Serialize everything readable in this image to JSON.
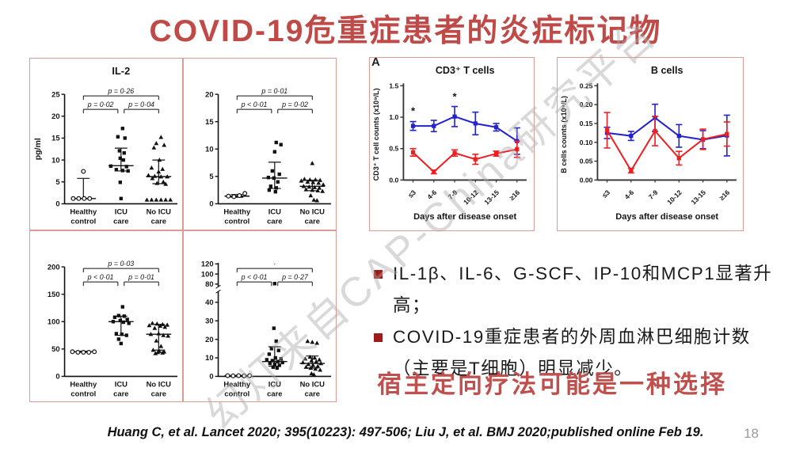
{
  "slide": {
    "title": "COVID-19危重症患者的炎症标记物",
    "panel_label": "A",
    "watermark": "幻灯来自CAP-China研究平台",
    "bullets": [
      [
        "IL-1β、IL-6、G-SCF、IP-10和MCP1显著升高；"
      ],
      [
        "COVID-19重症患者的外周血淋巴细胞计数",
        "（主要是T细胞）明显减少。"
      ]
    ],
    "conclusion": "宿主定向疗法可能是一种选择",
    "citation": "Huang C, et al. Lancet 2020; 395(10223): 497-506; Liu J, et al. BMJ 2020;published online Feb 19.",
    "page_number": "18"
  },
  "colors": {
    "title_red": "#BF4A47",
    "conclusion_red": "#C0504D",
    "bullet_square_red": "#9E1B1B",
    "panel_border_pink": "#DD9B94",
    "series_blue": "#2323CE",
    "series_red": "#EC2020",
    "watermark_gray": "#AAAAAA",
    "page_number_gray": "#9A9A9A"
  },
  "chart_data": [
    {
      "type": "scatter",
      "title": "IL-2",
      "ylabel": "pg/ml",
      "ylim": [
        0,
        25
      ],
      "yticks": [
        0,
        5,
        10,
        15,
        20,
        25
      ],
      "categories": [
        [
          "Healthy",
          "control"
        ],
        [
          "ICU",
          "care"
        ],
        [
          "No ICU",
          "care"
        ]
      ],
      "brackets": [
        {
          "from": 0,
          "to": 2,
          "level": 0,
          "label": "p = 0·26"
        },
        {
          "from": 0,
          "to": 1,
          "level": 1,
          "label": "p = 0·02"
        },
        {
          "from": 1,
          "to": 2,
          "level": 1,
          "label": "p = 0·04"
        }
      ],
      "groups": [
        {
          "marker": "circle-open",
          "median": 1.2,
          "q1": 1.2,
          "q3": 5.8,
          "points": [
            [
              -13,
              1.2
            ],
            [
              -6,
              1.2
            ],
            [
              1,
              1.2
            ],
            [
              8,
              1.2
            ],
            [
              0,
              7.4
            ]
          ]
        },
        {
          "marker": "square",
          "median": 8.7,
          "q1": 7.5,
          "q3": 12.7,
          "points": [
            [
              2,
              17.2
            ],
            [
              -4,
              15.3
            ],
            [
              5,
              15.0
            ],
            [
              -2,
              12.1
            ],
            [
              4,
              11.6
            ],
            [
              -1,
              10.4
            ],
            [
              3,
              10.0
            ],
            [
              -13,
              8.6
            ],
            [
              7,
              8.5
            ],
            [
              -6,
              7.8
            ],
            [
              2,
              7.6
            ],
            [
              9,
              7.5
            ],
            [
              -1,
              4.9
            ],
            [
              0,
              1.2
            ]
          ]
        },
        {
          "marker": "triangle",
          "median": 6.2,
          "q1": 4.6,
          "q3": 10.0,
          "points": [
            [
              3,
              15.2
            ],
            [
              -3,
              13.8
            ],
            [
              7,
              13.4
            ],
            [
              -6,
              12.8
            ],
            [
              1,
              10.0
            ],
            [
              -9,
              8.2
            ],
            [
              5,
              7.9
            ],
            [
              0,
              7.3
            ],
            [
              -13,
              6.5
            ],
            [
              -5,
              6.3
            ],
            [
              3,
              6.2
            ],
            [
              11,
              6.2
            ],
            [
              -8,
              5.8
            ],
            [
              6,
              5.0
            ],
            [
              -2,
              4.7
            ],
            [
              9,
              4.5
            ],
            [
              -15,
              0.9
            ],
            [
              -9,
              0.9
            ],
            [
              -3,
              0.9
            ],
            [
              3,
              0.9
            ],
            [
              9,
              0.9
            ],
            [
              15,
              0.9
            ]
          ]
        }
      ]
    },
    {
      "type": "scatter",
      "title": "",
      "ylabel": "",
      "ylim": [
        0,
        20
      ],
      "yticks": [
        0,
        5,
        10,
        15,
        20
      ],
      "categories": [
        [
          "Healthy",
          "control"
        ],
        [
          "ICU",
          "care"
        ],
        [
          "No ICU",
          "care"
        ]
      ],
      "brackets": [
        {
          "from": 0,
          "to": 2,
          "level": 0,
          "label": "p = 0·01"
        },
        {
          "from": 0,
          "to": 1,
          "level": 1,
          "label": "p < 0·01"
        },
        {
          "from": 1,
          "to": 2,
          "level": 1,
          "label": "p = 0·02"
        }
      ],
      "groups": [
        {
          "marker": "circle-open",
          "median": 1.4,
          "q1": 1.2,
          "q3": 1.7,
          "points": [
            [
              -11,
              1.4
            ],
            [
              -4,
              1.3
            ],
            [
              3,
              1.5
            ],
            [
              10,
              1.9
            ]
          ]
        },
        {
          "marker": "square",
          "median": 4.7,
          "q1": 2.8,
          "q3": 7.6,
          "points": [
            [
              2,
              11.2
            ],
            [
              8,
              10.8
            ],
            [
              0,
              9.5
            ],
            [
              -3,
              6.0
            ],
            [
              6,
              5.4
            ],
            [
              -8,
              4.8
            ],
            [
              -1,
              4.7
            ],
            [
              4,
              4.0
            ],
            [
              -5,
              3.2
            ],
            [
              2,
              2.9
            ],
            [
              -7,
              2.5
            ],
            [
              1,
              2.2
            ]
          ]
        },
        {
          "marker": "triangle",
          "median": 3.2,
          "q1": 2.4,
          "q3": 4.3,
          "points": [
            [
              0,
              7.4
            ],
            [
              -10,
              4.5
            ],
            [
              -3,
              4.4
            ],
            [
              4,
              4.4
            ],
            [
              10,
              4.3
            ],
            [
              -14,
              4.2
            ],
            [
              -6,
              4.0
            ],
            [
              1,
              3.9
            ],
            [
              8,
              3.8
            ],
            [
              14,
              3.5
            ],
            [
              -11,
              3.2
            ],
            [
              -4,
              3.1
            ],
            [
              3,
              3.0
            ],
            [
              9,
              2.9
            ],
            [
              -8,
              2.6
            ],
            [
              0,
              2.5
            ],
            [
              7,
              2.4
            ],
            [
              13,
              2.3
            ],
            [
              -2,
              1.5
            ],
            [
              2,
              0.7
            ],
            [
              6,
              0.6
            ]
          ]
        }
      ]
    },
    {
      "type": "scatter",
      "title": "",
      "ylabel": "",
      "ylim": [
        0,
        200
      ],
      "yticks": [
        0,
        50,
        100,
        150,
        200
      ],
      "categories": [
        [
          "Healthy",
          "control"
        ],
        [
          "ICU",
          "care"
        ],
        [
          "No ICU",
          "care"
        ]
      ],
      "brackets": [
        {
          "from": 0,
          "to": 2,
          "level": 0,
          "label": "p = 0·03"
        },
        {
          "from": 0,
          "to": 1,
          "level": 1,
          "label": "p < 0·01"
        },
        {
          "from": 1,
          "to": 2,
          "level": 1,
          "label": "p = 0·01"
        }
      ],
      "groups": [
        {
          "marker": "circle-open",
          "median": 45,
          "q1": 44,
          "q3": 46,
          "points": [
            [
              -14,
              45
            ],
            [
              -7,
              44
            ],
            [
              0,
              44
            ],
            [
              7,
              44
            ],
            [
              14,
              45
            ]
          ]
        },
        {
          "marker": "square",
          "median": 100,
          "q1": 75,
          "q3": 110,
          "points": [
            [
              2,
              127
            ],
            [
              -3,
              111
            ],
            [
              4,
              110
            ],
            [
              -8,
              108
            ],
            [
              8,
              104
            ],
            [
              -1,
              102
            ],
            [
              -10,
              100
            ],
            [
              3,
              99
            ],
            [
              10,
              97
            ],
            [
              -6,
              78
            ],
            [
              1,
              77
            ],
            [
              7,
              75
            ],
            [
              -3,
              68
            ],
            [
              0,
              60
            ]
          ]
        },
        {
          "marker": "triangle",
          "median": 77,
          "q1": 48,
          "q3": 95,
          "points": [
            [
              -8,
              97
            ],
            [
              -2,
              96
            ],
            [
              5,
              95
            ],
            [
              11,
              94
            ],
            [
              -12,
              93
            ],
            [
              2,
              92
            ],
            [
              8,
              90
            ],
            [
              -5,
              88
            ],
            [
              0,
              78
            ],
            [
              -10,
              77
            ],
            [
              6,
              75
            ],
            [
              12,
              74
            ],
            [
              -3,
              65
            ],
            [
              3,
              55
            ],
            [
              -7,
              48
            ],
            [
              1,
              46
            ],
            [
              7,
              45
            ],
            [
              -1,
              44
            ],
            [
              5,
              43
            ],
            [
              -4,
              42
            ]
          ]
        }
      ]
    },
    {
      "type": "scatter",
      "title": "",
      "ylabel": "",
      "ylim": [
        0,
        122
      ],
      "yticks": [
        0,
        10,
        20,
        30,
        40,
        80,
        100,
        120
      ],
      "broken_axis": {
        "lower_max": 45,
        "upper_min": 78
      },
      "categories": [
        [
          "Healthy",
          "control"
        ],
        [
          "ICU",
          "care"
        ],
        [
          "No ICU",
          "care"
        ]
      ],
      "brackets": [
        {
          "from": 0,
          "to": 2,
          "level": 0,
          "label": "·"
        },
        {
          "from": 0,
          "to": 1,
          "level": 1,
          "label": "p < 0·01"
        },
        {
          "from": 1,
          "to": 2,
          "level": 1,
          "label": "p = 0·27"
        }
      ],
      "groups": [
        {
          "marker": "circle-open",
          "median": 0.4,
          "q1": 0.3,
          "q3": 0.5,
          "points": [
            [
              -12,
              0.4
            ],
            [
              -5,
              0.3
            ],
            [
              2,
              0.4
            ],
            [
              9,
              0.3
            ],
            [
              16,
              0.4
            ]
          ]
        },
        {
          "marker": "square",
          "median": 8,
          "q1": 5.5,
          "q3": 16,
          "points": [
            [
              0,
              81
            ],
            [
              -1,
              26
            ],
            [
              2,
              19
            ],
            [
              -4,
              15
            ],
            [
              5,
              14
            ],
            [
              -7,
              12
            ],
            [
              1,
              10
            ],
            [
              8,
              9.5
            ],
            [
              -10,
              9
            ],
            [
              -3,
              8.5
            ],
            [
              4,
              8
            ],
            [
              10,
              7.5
            ],
            [
              -6,
              7
            ],
            [
              0,
              6.5
            ],
            [
              6,
              6
            ],
            [
              -2,
              5
            ],
            [
              3,
              4.5
            ]
          ]
        },
        {
          "marker": "triangle",
          "median": 7,
          "q1": 4.5,
          "q3": 11,
          "points": [
            [
              -6,
              19
            ],
            [
              0,
              18.5
            ],
            [
              6,
              18
            ],
            [
              -3,
              10.5
            ],
            [
              3,
              10
            ],
            [
              -9,
              9.5
            ],
            [
              9,
              9
            ],
            [
              -1,
              8.5
            ],
            [
              5,
              8
            ],
            [
              -12,
              7.5
            ],
            [
              11,
              7
            ],
            [
              -5,
              6.5
            ],
            [
              1,
              6
            ],
            [
              7,
              5.5
            ],
            [
              -8,
              5
            ],
            [
              -2,
              4.5
            ],
            [
              4,
              4
            ],
            [
              10,
              3.5
            ],
            [
              -1,
              1.5
            ],
            [
              2,
              1
            ]
          ]
        }
      ]
    },
    {
      "type": "line",
      "title": "CD3⁺ T cells",
      "corner_label": "A",
      "ylabel": "CD3⁺ T cell counts (x10⁹/L)",
      "xlabel": "Days after disease onset",
      "ylim": [
        0,
        1.5
      ],
      "yticks": [
        0,
        0.5,
        1,
        1.5
      ],
      "ytick_labels": [
        "0.0",
        "0.5",
        "1.0",
        "1.5"
      ],
      "categories": [
        "≤3",
        "4-6",
        "7-9",
        "10-12",
        "13-15",
        "≥16"
      ],
      "series": [
        {
          "name": "blue-series",
          "color": "#2323CE",
          "values": [
            0.86,
            0.86,
            1.01,
            0.9,
            0.84,
            0.62
          ],
          "errors": [
            0.07,
            0.09,
            0.16,
            0.18,
            0.06,
            0.21
          ]
        },
        {
          "name": "red-series",
          "color": "#EC2020",
          "values": [
            0.44,
            0.13,
            0.43,
            0.33,
            0.42,
            0.49
          ],
          "errors": [
            0.06,
            0.03,
            0.05,
            0.08,
            0.04,
            0.13
          ]
        }
      ],
      "asterisks": [
        {
          "cat": 0,
          "y": 1.08
        },
        {
          "cat": 2,
          "y": 1.31
        }
      ]
    },
    {
      "type": "line",
      "title": "B cells",
      "ylabel": "B cells counts (x10⁹/L)",
      "xlabel": "Days after disease onset",
      "ylim": [
        0,
        0.25
      ],
      "yticks": [
        0,
        0.05,
        0.1,
        0.15,
        0.2,
        0.25
      ],
      "ytick_labels": [
        "0.00",
        "0.05",
        "0.10",
        "0.15",
        "0.20",
        "0.25"
      ],
      "categories": [
        "≤3",
        "4-6",
        "7-9",
        "10-12",
        "13-15",
        "≥16"
      ],
      "series": [
        {
          "name": "blue-series",
          "color": "#2323CE",
          "values": [
            0.125,
            0.117,
            0.165,
            0.117,
            0.107,
            0.118
          ],
          "errors": [
            0.015,
            0.012,
            0.036,
            0.03,
            0.024,
            0.054
          ]
        },
        {
          "name": "red-series",
          "color": "#EC2020",
          "values": [
            0.132,
            0.025,
            0.13,
            0.058,
            0.108,
            0.122
          ],
          "errors": [
            0.047,
            0.006,
            0.039,
            0.018,
            0.027,
            0.032
          ]
        }
      ],
      "asterisks": []
    }
  ]
}
